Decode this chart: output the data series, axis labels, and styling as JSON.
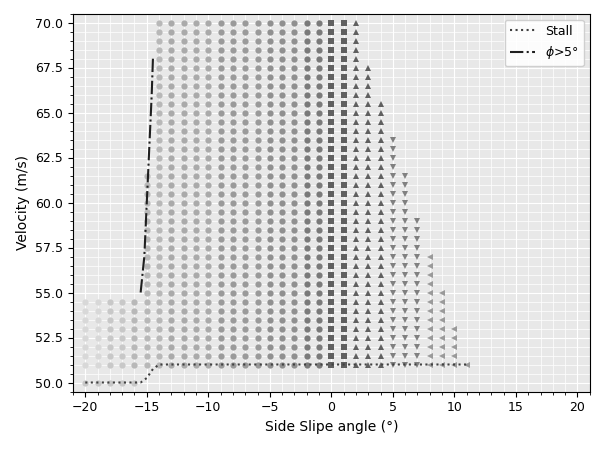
{
  "xlabel": "Side Slipe angle (°)",
  "ylabel": "Velocity (m/s)",
  "xlim": [
    -21,
    21
  ],
  "ylim": [
    49.5,
    70.5
  ],
  "xticks": [
    -20,
    -15,
    -10,
    -5,
    0,
    5,
    10,
    15,
    20
  ],
  "yticks": [
    50.0,
    52.5,
    55.0,
    57.5,
    60.0,
    62.5,
    65.0,
    67.5,
    70.0
  ],
  "background_color": "#e8e8e8",
  "grid_color": "#ffffff"
}
